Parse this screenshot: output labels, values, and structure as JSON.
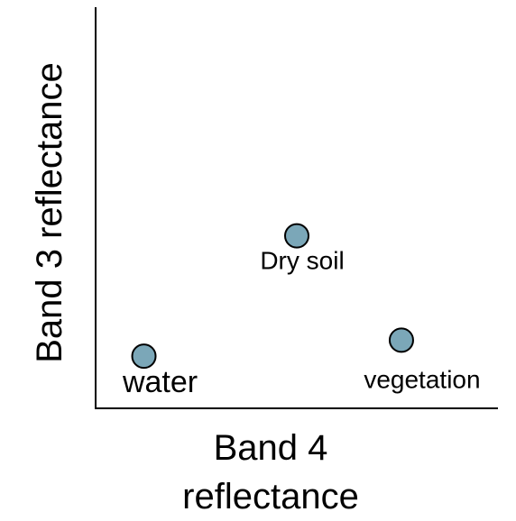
{
  "chart_data": {
    "type": "scatter",
    "x_label": "Band 4 reflectance",
    "y_label": "Band 3 reflectance",
    "labels": [
      "water",
      "Dry soil",
      "vegetation"
    ],
    "x": [
      12,
      50,
      76
    ],
    "values": [
      13,
      43,
      17
    ],
    "xlim": [
      0,
      100
    ],
    "ylim": [
      0,
      100
    ],
    "color": "#7ba7b8"
  }
}
